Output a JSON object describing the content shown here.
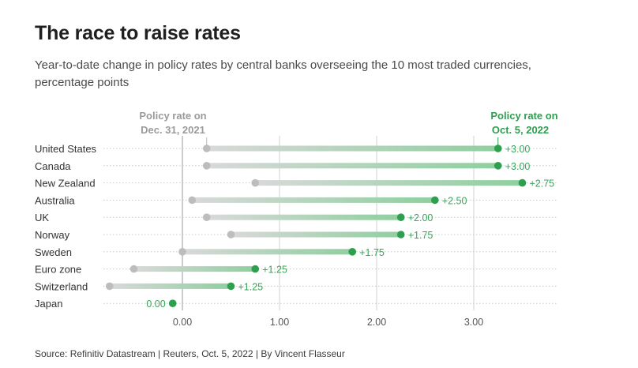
{
  "title": "The race to raise rates",
  "subtitle": "Year-to-date change in policy rates by central banks overseeing the 10 most traded currencies, percentage points",
  "source": "Source: Refinitiv Datastream | Reuters, Oct. 5, 2022 | By Vincent Flasseur",
  "colors": {
    "start": "#bdbdbd",
    "end": "#2e9e4f",
    "bar_start": "#d9d9d9",
    "bar_end": "#8fcf9f",
    "text_green": "#3aa45a"
  },
  "chart_data": {
    "type": "dumbbell",
    "start_label": [
      "Policy rate on",
      "Dec. 31, 2021"
    ],
    "end_label": [
      "Policy rate on",
      "Oct. 5, 2022"
    ],
    "xlim": [
      -0.8,
      3.85
    ],
    "xticks": [
      0,
      1,
      2,
      3
    ],
    "xtick_labels": [
      "0.00",
      "1.00",
      "2.00",
      "3.00"
    ],
    "categories": [
      "United States",
      "Canada",
      "New Zealand",
      "Australia",
      "UK",
      "Norway",
      "Sweden",
      "Euro zone",
      "Switzerland",
      "Japan"
    ],
    "start": [
      0.25,
      0.25,
      0.75,
      0.1,
      0.25,
      0.5,
      0.0,
      -0.5,
      -0.75,
      -0.1
    ],
    "end": [
      3.25,
      3.25,
      3.5,
      2.6,
      2.25,
      2.25,
      1.75,
      0.75,
      0.5,
      -0.1
    ],
    "change_labels": [
      "+3.00",
      "+3.00",
      "+2.75",
      "+2.50",
      "+2.00",
      "+1.75",
      "+1.75",
      "+1.25",
      "+1.25",
      "0.00"
    ],
    "grid": true
  }
}
